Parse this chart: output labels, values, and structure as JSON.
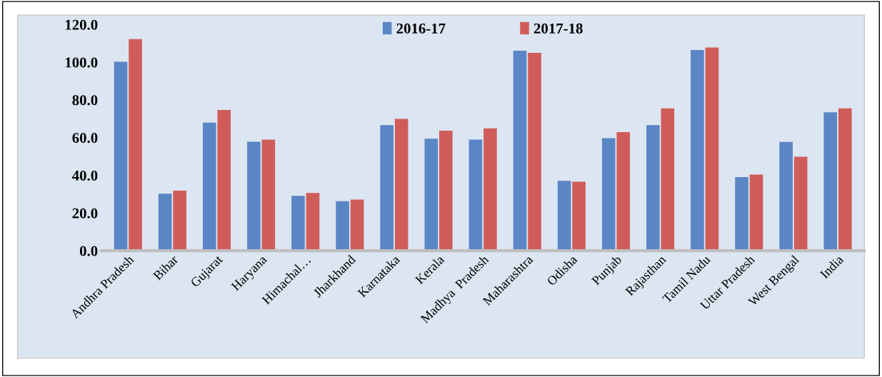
{
  "chart_data": {
    "type": "bar",
    "categories": [
      "Andhra Pradesh",
      "Bihar",
      "Gujarat",
      "Haryana",
      "Himachal…",
      "Jharkhand",
      "Karnataka",
      "Kerala",
      "Madhya  Pradesh",
      "Maharashtra",
      "Odisha",
      "Punjab",
      "Rajasthan",
      "Tamil Nadu",
      "Uttar Pradesh",
      "West Bengal",
      "India"
    ],
    "series": [
      {
        "name": "2016-17",
        "color": "#5b86c5",
        "values": [
          100.2,
          30.3,
          67.9,
          57.8,
          29.1,
          26.3,
          66.6,
          59.4,
          58.9,
          106.1,
          37.1,
          59.7,
          66.6,
          106.5,
          39.1,
          57.7,
          73.4
        ]
      },
      {
        "name": "2017-18",
        "color": "#d05c5a",
        "values": [
          112.3,
          31.9,
          74.7,
          58.9,
          30.6,
          27.1,
          69.9,
          63.7,
          64.9,
          105.0,
          36.6,
          62.9,
          75.5,
          107.8,
          40.4,
          49.9,
          75.5
        ]
      }
    ],
    "ylim": [
      0,
      120
    ],
    "yticks": [
      {
        "value": 0,
        "label": "0.0"
      },
      {
        "value": 20,
        "label": "20.0"
      },
      {
        "value": 40,
        "label": "40.0"
      },
      {
        "value": 60,
        "label": "60.0"
      },
      {
        "value": 80,
        "label": "80.0"
      },
      {
        "value": 100,
        "label": "100.0"
      },
      {
        "value": 120,
        "label": "120.0"
      }
    ],
    "grid": false,
    "legend": "top"
  }
}
